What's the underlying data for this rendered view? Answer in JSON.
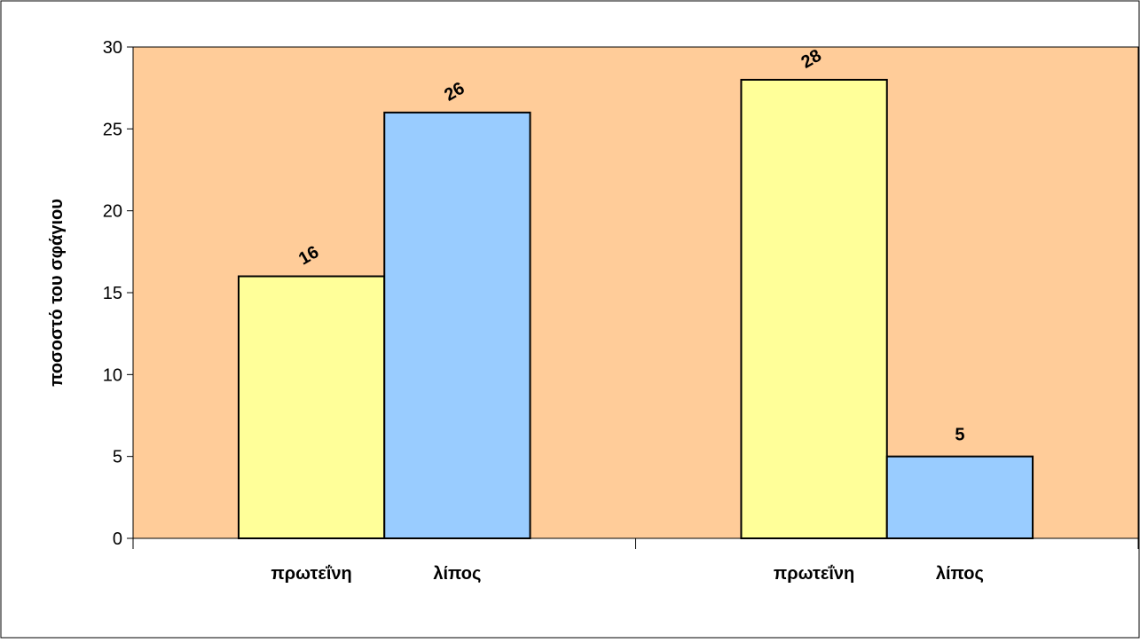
{
  "chart_data": {
    "type": "bar",
    "ylabel": "ποσοστό του σφάγιου",
    "ylim": [
      0,
      30
    ],
    "yticks": [
      0,
      5,
      10,
      15,
      20,
      25,
      30
    ],
    "groups": [
      {
        "bars": [
          {
            "label": "πρωτεΐνη",
            "value": 16,
            "color": "#ffff99"
          },
          {
            "label": "λίπος",
            "value": 26,
            "color": "#99ccff"
          }
        ]
      },
      {
        "bars": [
          {
            "label": "πρωτεΐνη",
            "value": 28,
            "color": "#ffff99"
          },
          {
            "label": "λίπος",
            "value": 5,
            "color": "#99ccff"
          }
        ]
      }
    ],
    "plot_background": "#ffcc99",
    "grid": false
  }
}
